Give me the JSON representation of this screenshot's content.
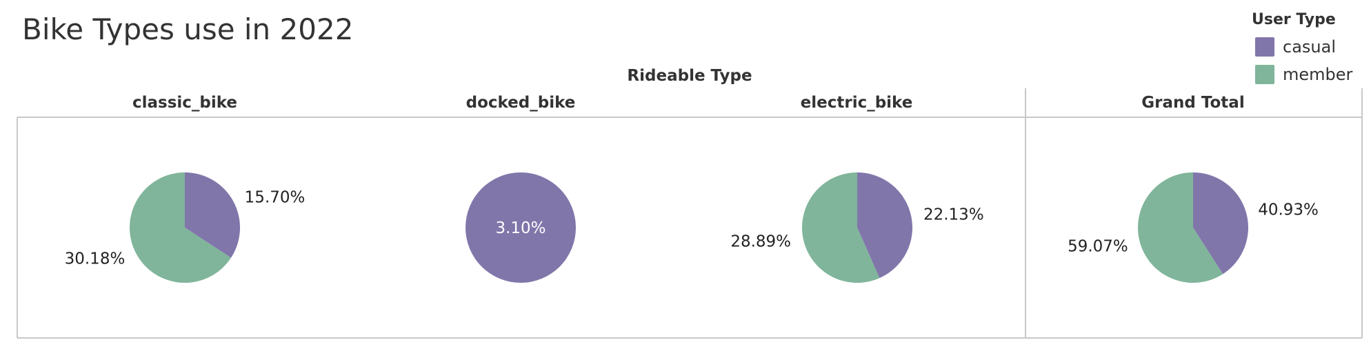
{
  "title": "Bike Types use in 2022",
  "legend": {
    "title": "User Type",
    "items": [
      {
        "label": "casual",
        "color": "#8176aa"
      },
      {
        "label": "member",
        "color": "#80b59b"
      }
    ]
  },
  "column_header": "Rideable Type",
  "chart_data": {
    "type": "pie",
    "title": "Bike Types use in 2022",
    "facet_label": "Rideable Type",
    "legend_placement": "top-right",
    "series_names": [
      "casual",
      "member"
    ],
    "panels": [
      {
        "label": "classic_bike",
        "slices": [
          {
            "name": "casual",
            "value": 15.7,
            "label": "15.70%"
          },
          {
            "name": "member",
            "value": 30.18,
            "label": "30.18%"
          }
        ]
      },
      {
        "label": "docked_bike",
        "slices": [
          {
            "name": "casual",
            "value": 3.1,
            "label": "3.10%"
          }
        ]
      },
      {
        "label": "electric_bike",
        "slices": [
          {
            "name": "casual",
            "value": 22.13,
            "label": "22.13%"
          },
          {
            "name": "member",
            "value": 28.89,
            "label": "28.89%"
          }
        ]
      },
      {
        "label": "Grand Total",
        "slices": [
          {
            "name": "casual",
            "value": 40.93,
            "label": "40.93%"
          },
          {
            "name": "member",
            "value": 59.07,
            "label": "59.07%"
          }
        ]
      }
    ]
  }
}
